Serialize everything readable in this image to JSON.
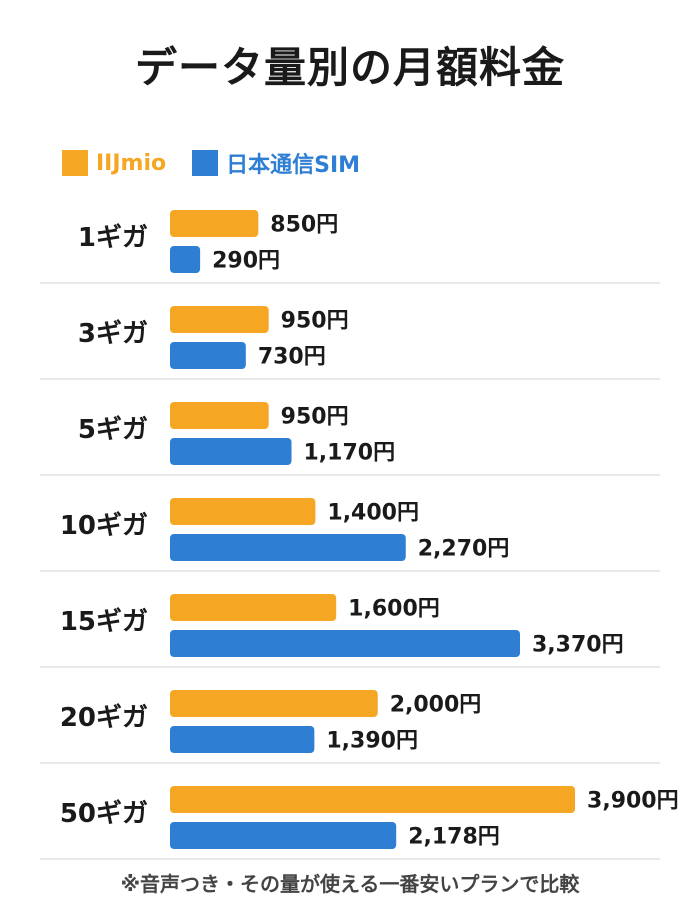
{
  "title": "データ量別の月額料金",
  "note": "※音声つき・その量が使える一番安いプランで比較",
  "colors": {
    "iijmio": "#F5A623",
    "nihon": "#2E7ED3",
    "grid": "#e2e2e2",
    "text": "#1a1a1a",
    "inside_label": "#ffffff"
  },
  "chart_data": {
    "type": "bar",
    "orientation": "horizontal",
    "categories": [
      "1ギガ",
      "3ギガ",
      "5ギガ",
      "10ギガ",
      "15ギガ",
      "20ギガ",
      "50ギガ"
    ],
    "series": [
      {
        "name": "IIJmio",
        "values": [
          850,
          950,
          950,
          1400,
          1600,
          2000,
          3900
        ],
        "labels": [
          "850円",
          "950円",
          "950円",
          "1,400円",
          "1,600円",
          "2,000円",
          "3,900円"
        ]
      },
      {
        "name": "日本通信SIM",
        "values": [
          290,
          730,
          1170,
          2270,
          3370,
          1390,
          2178
        ],
        "labels": [
          "290円",
          "730円",
          "1,170円",
          "2,270円",
          "3,370円",
          "1,390円",
          "2,178円"
        ]
      }
    ],
    "legend_position": "top-left",
    "grid": false
  }
}
